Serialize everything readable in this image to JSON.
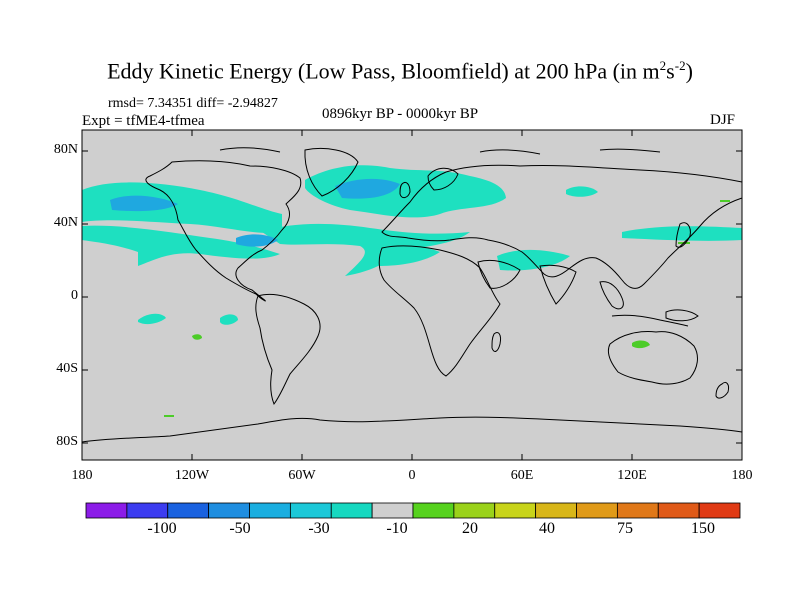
{
  "title": {
    "main": "Eddy Kinetic Energy (Low Pass, Bloomfield) at 200 hPa (in m",
    "sup1": "2",
    "mid": "s",
    "sup2": "-2",
    "end": ")"
  },
  "stats": {
    "rmsd": "rmsd= 7.34351 diff= -2.94827"
  },
  "experiment": "Expt = tfME4-tfmea",
  "period": "0896kyr BP - 0000kyr BP",
  "season": "DJF",
  "axes": {
    "lat_labels": [
      "80N",
      "40N",
      "0",
      "40S",
      "80S"
    ],
    "lon_labels": [
      "180",
      "120W",
      "60W",
      "0",
      "60E",
      "120E",
      "180"
    ]
  },
  "colorbar": {
    "labels": [
      "-100",
      "-50",
      "-30",
      "-10",
      "20",
      "40",
      "75",
      "150"
    ],
    "colors": [
      "#8c1ce8",
      "#3c3cf0",
      "#1a62e0",
      "#1f8ee0",
      "#1aaee0",
      "#1cc8d8",
      "#16d8c0",
      "#cfcfcf",
      "#56d21e",
      "#9ad21a",
      "#c8d41a",
      "#d8b618",
      "#e09a18",
      "#e07818",
      "#e05a18",
      "#e03a14"
    ]
  },
  "colors": {
    "land_bg": "#cfcfcf",
    "anomaly_cyan": "#1ee0c0",
    "anomaly_blue": "#1fa8e0",
    "anomaly_green": "#4ccc28"
  }
}
